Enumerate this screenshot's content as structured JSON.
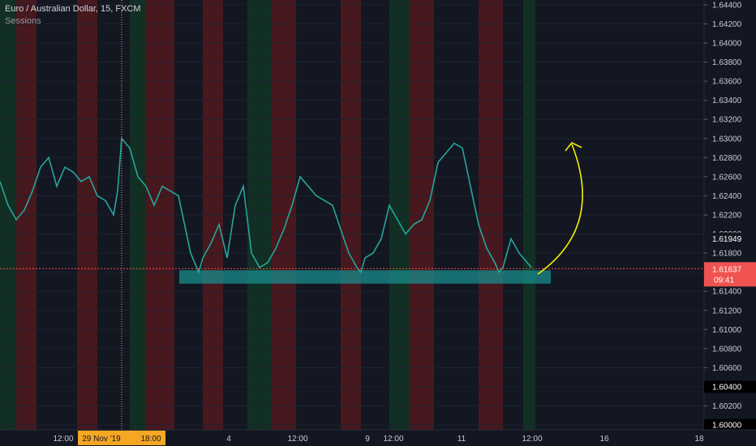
{
  "header": {
    "symbol_line": "Euro / Australian Dollar, 15, FXCM",
    "indicator": "Sessions"
  },
  "chart_data": {
    "type": "line",
    "price_axis_ticks": [
      "1.64400",
      "1.64200",
      "1.64000",
      "1.63800",
      "1.63600",
      "1.63400",
      "1.63200",
      "1.63000",
      "1.62800",
      "1.62600",
      "1.62400",
      "1.62200",
      "1.62000",
      "1.61800",
      "1.61600",
      "1.61400",
      "1.61200",
      "1.61000",
      "1.60800",
      "1.60600",
      "1.60400",
      "1.60200",
      "1.60000"
    ],
    "ylim": [
      1.5995,
      1.6445
    ],
    "time_axis_labels": [
      "12:00",
      "29 Nov '19",
      "18:00",
      "4",
      "12:00",
      "9",
      "12:00",
      "11",
      "12:00",
      "16",
      "18"
    ],
    "series": [
      {
        "x": [
          0,
          10,
          20,
          30,
          40,
          50,
          60,
          70,
          80,
          90,
          100,
          110,
          120,
          130,
          140,
          145,
          150,
          160,
          170,
          180,
          190,
          200,
          210,
          220,
          230,
          235,
          240,
          245,
          250,
          260,
          270,
          280,
          290,
          300,
          310,
          320,
          330,
          340,
          350,
          360,
          370,
          380,
          390,
          400,
          410,
          420,
          430,
          440,
          445,
          450,
          460,
          470,
          480,
          490,
          500,
          510,
          520,
          530,
          540,
          550,
          560,
          570,
          580,
          590,
          600,
          610,
          615,
          620,
          630,
          640,
          650,
          655
        ],
        "values": [
          1.6255,
          1.623,
          1.6215,
          1.6225,
          1.6245,
          1.627,
          1.628,
          1.625,
          1.627,
          1.6265,
          1.6255,
          1.626,
          1.624,
          1.6235,
          1.622,
          1.6245,
          1.63,
          1.629,
          1.626,
          1.625,
          1.623,
          1.625,
          1.6245,
          1.624,
          1.62,
          1.618,
          1.617,
          1.616,
          1.6175,
          1.619,
          1.621,
          1.6175,
          1.623,
          1.625,
          1.618,
          1.6165,
          1.617,
          1.6185,
          1.6205,
          1.623,
          1.626,
          1.625,
          1.624,
          1.6235,
          1.623,
          1.6205,
          1.618,
          1.6165,
          1.616,
          1.6175,
          1.618,
          1.6195,
          1.623,
          1.6215,
          1.62,
          1.621,
          1.6215,
          1.6235,
          1.6275,
          1.6285,
          1.6295,
          1.629,
          1.625,
          1.621,
          1.6185,
          1.617,
          1.616,
          1.6165,
          1.6195,
          1.618,
          1.617,
          1.6165
        ]
      }
    ],
    "current_price": "1.61637",
    "countdown": "09:41",
    "price_marker": "1.61949",
    "level_marker": "1.60400",
    "bottom_marker": "1.60000",
    "support_zone": [
      1.6148,
      1.6162
    ],
    "colors": {
      "background": "#131722",
      "price_line": "#ef5350",
      "zone": "#1a8c8c",
      "arrow": "#f5f000",
      "crosshair": "#f5a623",
      "session_red": "#5a1a1e",
      "session_green": "#123a24"
    }
  }
}
